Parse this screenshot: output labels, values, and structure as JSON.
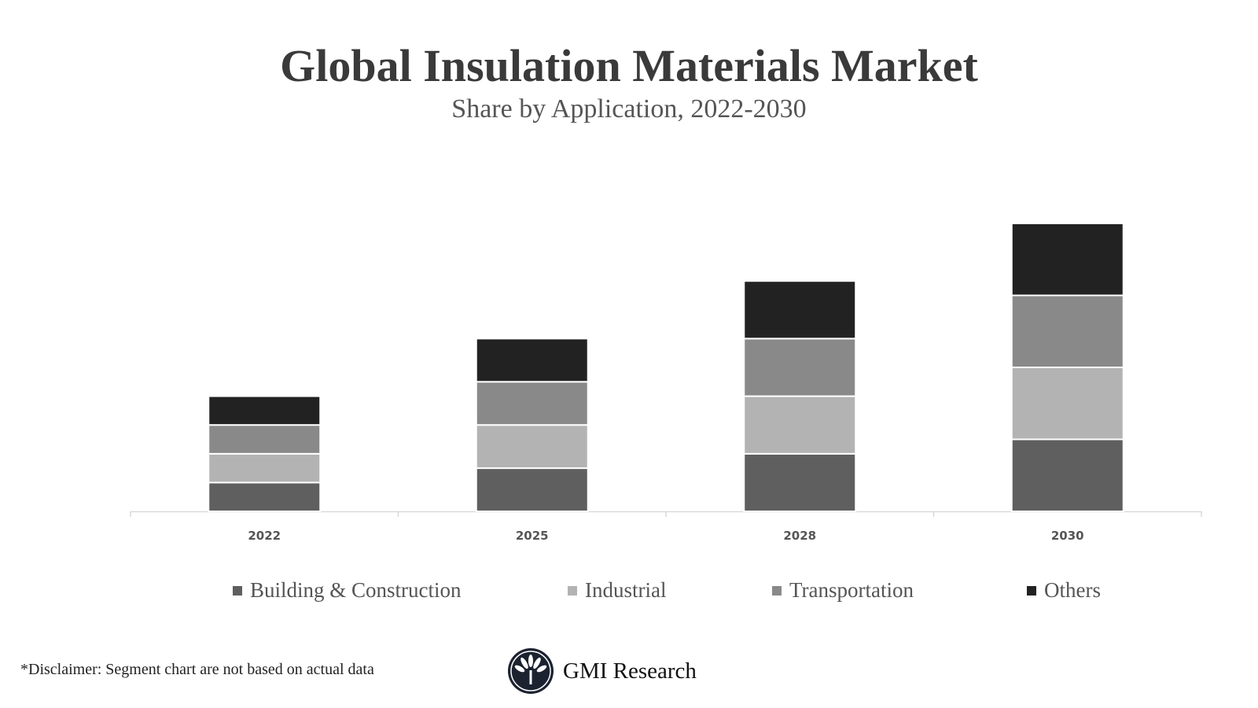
{
  "chart_data": {
    "type": "bar",
    "stacked": true,
    "title": "Global Insulation Materials Market",
    "subtitle": "Share by Application, 2022-2030",
    "categories": [
      "2022",
      "2025",
      "2028",
      "2030"
    ],
    "series": [
      {
        "name": "Building & Construction",
        "color": "#5f5f5f",
        "values": [
          2,
          3,
          4,
          5
        ]
      },
      {
        "name": "Industrial",
        "color": "#b3b3b3",
        "values": [
          2,
          3,
          4,
          5
        ]
      },
      {
        "name": "Transportation",
        "color": "#898989",
        "values": [
          2,
          3,
          4,
          5
        ]
      },
      {
        "name": "Others",
        "color": "#222222",
        "values": [
          2,
          3,
          4,
          5
        ]
      }
    ],
    "xlabel": "",
    "ylabel": "",
    "y_axis_visible": false,
    "grid": false,
    "legend_position": "bottom"
  },
  "footer": {
    "disclaimer": "*Disclaimer:  Segment chart are not based on actual data",
    "logo_text": "GMI Research"
  }
}
